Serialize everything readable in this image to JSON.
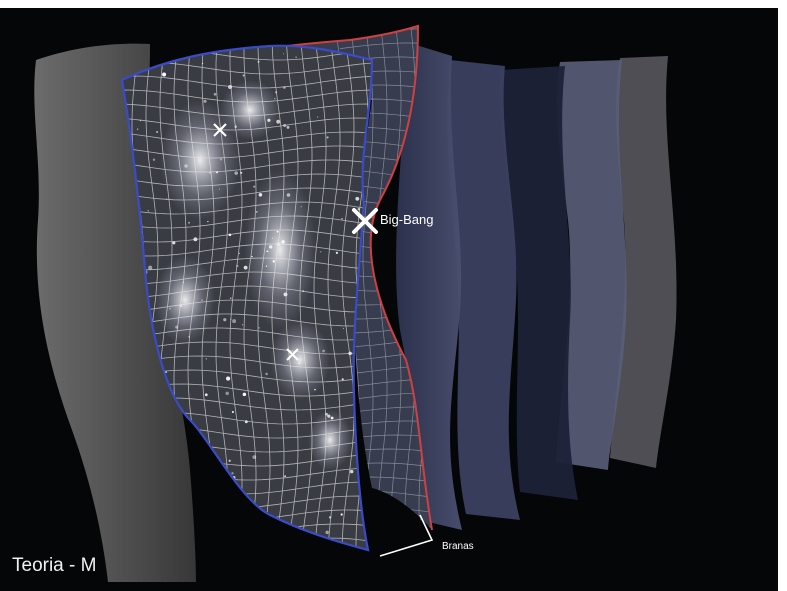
{
  "labels": {
    "big_bang": "Big-Bang",
    "branas": "Branas",
    "title": "Teoria - M"
  },
  "colors": {
    "background": "#050608",
    "grid": "#e6e6e6",
    "front_brane_outline": "#3a4bc8",
    "second_brane_outline": "#d04040",
    "far_brane": "#8a8fa6"
  }
}
